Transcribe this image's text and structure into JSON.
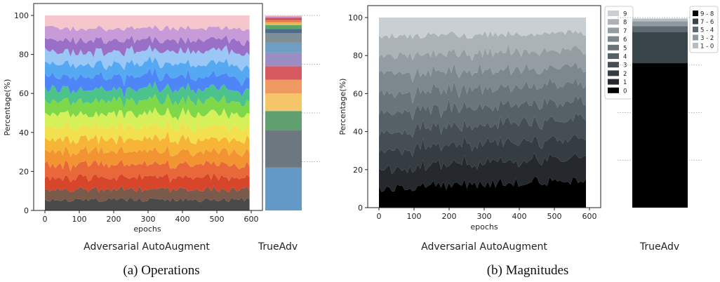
{
  "chart_data": [
    {
      "type": "area",
      "stacked": true,
      "title": "Adversarial AutoAugment",
      "caption": "(a) Operations",
      "xlabel": "epochs",
      "ylabel": "Percentage(%)",
      "xlim": [
        0,
        600
      ],
      "ylim": [
        0,
        100
      ],
      "xticks": [
        "0",
        "100",
        "200",
        "300",
        "400",
        "500",
        "600"
      ],
      "yticks": [
        "0",
        "20",
        "40",
        "60",
        "80",
        "100"
      ],
      "grid": false,
      "legend": "none",
      "series_count": 16,
      "approx_band_shares_percent": [
        5.5,
        5.5,
        6,
        6.5,
        6.5,
        6,
        6.5,
        6.5,
        6.5,
        6,
        6.5,
        6.5,
        6.5,
        6,
        6,
        6.5
      ],
      "band_colors": [
        "#4a4a4a",
        "#7a5a4a",
        "#d7452b",
        "#e8683a",
        "#f39433",
        "#f7b538",
        "#f2e04e",
        "#d6f05a",
        "#7ed84a",
        "#4cc38a",
        "#4f86f7",
        "#55a8f2",
        "#9ac7f5",
        "#9a6fc8",
        "#c79ad8",
        "#f5c7cc"
      ]
    },
    {
      "type": "bar",
      "stacked": true,
      "title": "TrueAdv",
      "ylim": [
        0,
        100
      ],
      "segments_percent": [
        22,
        19,
        10,
        9,
        7,
        7,
        7,
        5,
        5,
        2,
        2,
        1.5,
        1.2,
        1,
        0.8,
        0.5
      ],
      "segment_colors": [
        "#6399c6",
        "#6d7780",
        "#60a070",
        "#f5c56a",
        "#ef9a62",
        "#d65a60",
        "#9a8ec4",
        "#6e9ec4",
        "#7f8d95",
        "#4d6c8a",
        "#5da36b",
        "#e8b65a",
        "#e57a50",
        "#c94b4b",
        "#b98fd0",
        "#f3c7cc"
      ],
      "reference_lines_percent": [
        25,
        50,
        75,
        100
      ]
    },
    {
      "type": "area",
      "stacked": true,
      "title": "Adversarial AutoAugment",
      "caption": "(b) Magnitudes",
      "xlabel": "epochs",
      "ylabel": "Percentage(%)",
      "xlim": [
        0,
        600
      ],
      "ylim": [
        0,
        100
      ],
      "xticks": [
        "0",
        "100",
        "200",
        "300",
        "400",
        "500",
        "600"
      ],
      "yticks": [
        "0",
        "20",
        "40",
        "60",
        "80",
        "100"
      ],
      "grid": false,
      "legend": "top-right",
      "legend_entries": [
        "9",
        "8",
        "7",
        "6",
        "5",
        "4",
        "3",
        "2",
        "1",
        "0"
      ],
      "approx_band_shares_start_percent": [
        10,
        10,
        10,
        10,
        10,
        10,
        10,
        10,
        10,
        10
      ],
      "approx_band_shares_end_percent": [
        15,
        12,
        10,
        10,
        9,
        9,
        9,
        9,
        9,
        8
      ],
      "band_colors": [
        "#000000",
        "#25292d",
        "#363d42",
        "#454e54",
        "#566167",
        "#69757b",
        "#7d888e",
        "#939da2",
        "#abb3b7",
        "#c9cfd2"
      ]
    },
    {
      "type": "bar",
      "stacked": true,
      "title": "TrueAdv",
      "ylim": [
        0,
        100
      ],
      "segments_percent": [
        76,
        16.5,
        3,
        2.5,
        1.5
      ],
      "segment_labels": [
        "9 - 8",
        "7 - 6",
        "5 - 4",
        "3 - 2",
        "1 - 0"
      ],
      "segment_colors": [
        "#000000",
        "#3a454b",
        "#5d6a72",
        "#8e989e",
        "#b7bec2"
      ],
      "legend": "top-right",
      "reference_lines_percent": [
        25,
        50,
        75,
        100
      ]
    }
  ]
}
